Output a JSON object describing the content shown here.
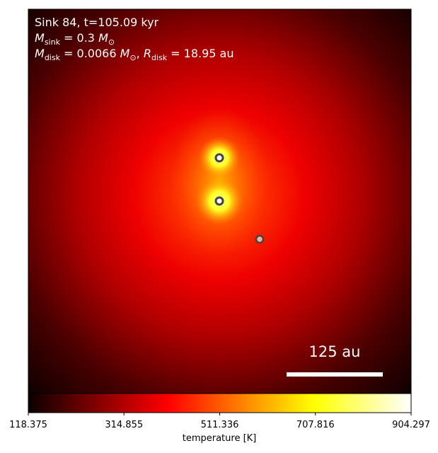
{
  "chart_data": {
    "type": "image",
    "annotation_lines": [
      [
        {
          "text": "Sink 84, t=105.09 kyr"
        }
      ],
      [
        {
          "text": "M",
          "italic": true
        },
        {
          "text": "sink",
          "sub": true
        },
        {
          "text": " = 0.3 "
        },
        {
          "text": "M",
          "italic": true
        },
        {
          "text": "⊙",
          "sub": true
        }
      ],
      [
        {
          "text": "M",
          "italic": true
        },
        {
          "text": "disk",
          "sub": true
        },
        {
          "text": " = 0.0066 "
        },
        {
          "text": "M",
          "italic": true
        },
        {
          "text": "⊙",
          "sub": true
        },
        {
          "text": ", "
        },
        {
          "text": "R",
          "italic": true
        },
        {
          "text": "disk",
          "sub": true
        },
        {
          "text": " = 18.95 au"
        }
      ]
    ],
    "scale_bar_label": "125 au",
    "colorbar": {
      "label": "temperature [K]",
      "colormap": "hot",
      "lim": [
        118.375,
        904.297
      ],
      "ticks": [
        118.375,
        314.855,
        511.336,
        707.816,
        904.297
      ]
    }
  }
}
